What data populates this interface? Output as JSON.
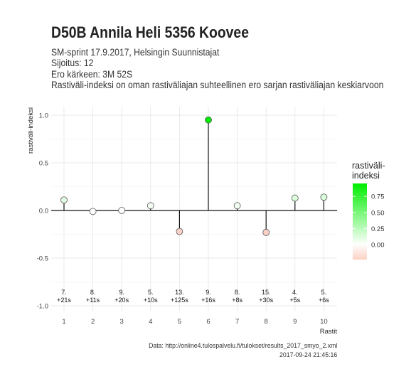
{
  "title": "D50B Annila Heli 5356 Koovee",
  "subtitle_lines": [
    "SM-sprint 17.9.2017, Helsingin Suunnistajat",
    "Sijoitus: 12",
    "Ero kärkeen: 3M 52S",
    "Rastiväli-indeksi on oman rastiväliajan suhteellinen ero sarjan rastiväliajan keskiarvoon"
  ],
  "caption": {
    "source": "Data: http://online4.tulospalvelu.fi/tulokset/results_2017_smyo_2.xml",
    "timestamp": "2017-09-24 21:45:16"
  },
  "chart_data": {
    "type": "scatter",
    "style": "lollipop",
    "x": [
      1,
      2,
      3,
      4,
      5,
      6,
      7,
      8,
      9,
      10
    ],
    "y": [
      0.11,
      -0.01,
      0.0,
      0.05,
      -0.22,
      0.95,
      0.05,
      -0.23,
      0.13,
      0.14
    ],
    "annotations": [
      [
        "7.",
        "+21s"
      ],
      [
        "8.",
        "+11s"
      ],
      [
        "9.",
        "+20s"
      ],
      [
        "5.",
        "+10s"
      ],
      [
        "13.",
        "+125s"
      ],
      [
        "9.",
        "+16s"
      ],
      [
        "8.",
        "+8s"
      ],
      [
        "15.",
        "+30s"
      ],
      [
        "4.",
        "+5s"
      ],
      [
        "5.",
        "+6s"
      ]
    ],
    "xlabel": "Rastit",
    "ylabel": "rastiväli-indeksi",
    "xlim": [
      0.5,
      10.5
    ],
    "ylim": [
      -1.05,
      1.1
    ],
    "yticks": [
      -1.0,
      -0.5,
      0.0,
      0.5,
      1.0
    ],
    "ytick_labels": [
      "-1.0",
      "-0.5",
      "0.0",
      "0.5",
      "1.0"
    ],
    "xticks": [
      1,
      2,
      3,
      4,
      5,
      6,
      7,
      8,
      9,
      10
    ],
    "grid": true,
    "legend": {
      "title": "rastiväli-\nindeksi",
      "placement": "right",
      "range": [
        -0.23,
        0.95
      ],
      "ticks": [
        0.75,
        0.5,
        0.25,
        0.0
      ],
      "tick_labels": [
        "0.75",
        "0.50",
        "0.25",
        "0.00"
      ],
      "colors": {
        "low": "#fbd0c4",
        "mid": "#ffffff",
        "high": "#00ee00"
      }
    }
  }
}
